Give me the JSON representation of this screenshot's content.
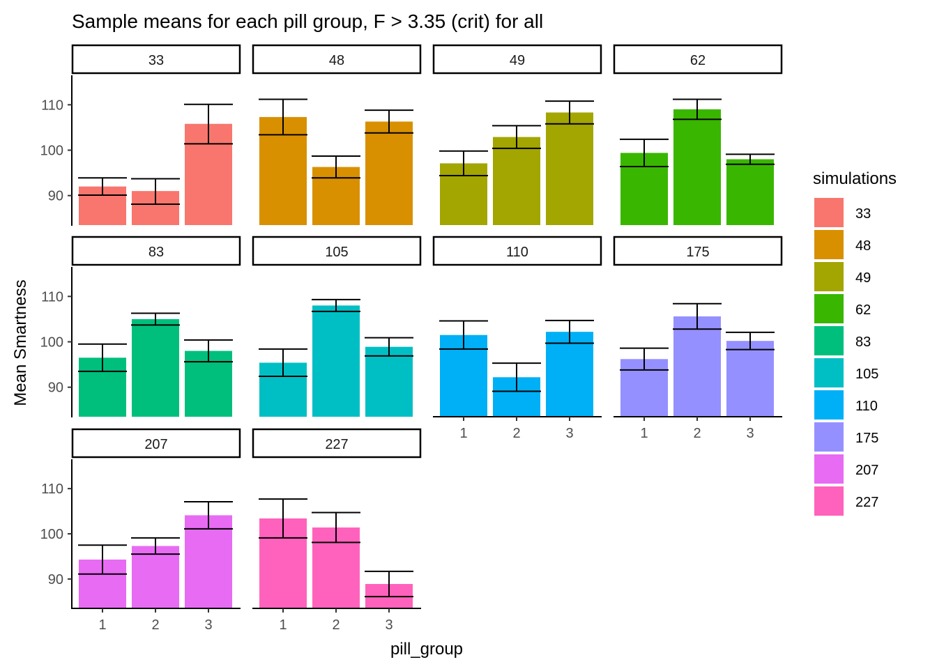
{
  "chart_data": {
    "type": "bar",
    "title": "Sample means for each pill group, F > 3.35 (crit) for all",
    "xlabel": "pill_group",
    "ylabel": "Mean Smartness",
    "categories": [
      "1",
      "2",
      "3"
    ],
    "yticks": [
      90,
      100,
      110
    ],
    "ylim": [
      83.5,
      116.5
    ],
    "grid": false,
    "legend": {
      "title": "simulations",
      "position": "right"
    },
    "panels": [
      {
        "label": "33",
        "color": "#F8766D",
        "means": [
          92.0,
          91.0,
          105.8
        ],
        "lower": [
          90.1,
          88.1,
          101.4
        ],
        "upper": [
          93.9,
          93.7,
          110.1
        ]
      },
      {
        "label": "48",
        "color": "#D89000",
        "means": [
          107.3,
          96.3,
          106.3
        ],
        "lower": [
          103.4,
          93.9,
          103.8
        ],
        "upper": [
          111.2,
          98.7,
          108.8
        ]
      },
      {
        "label": "49",
        "color": "#A3A500",
        "means": [
          97.1,
          102.9,
          108.3
        ],
        "lower": [
          94.4,
          100.4,
          105.8
        ],
        "upper": [
          99.8,
          105.4,
          110.8
        ]
      },
      {
        "label": "62",
        "color": "#39B600",
        "means": [
          99.4,
          109.0,
          98.0
        ],
        "lower": [
          96.4,
          106.8,
          96.9
        ],
        "upper": [
          102.4,
          111.2,
          99.1
        ]
      },
      {
        "label": "83",
        "color": "#00BF7D",
        "means": [
          96.5,
          105.0,
          98.0
        ],
        "lower": [
          93.5,
          103.7,
          95.6
        ],
        "upper": [
          99.5,
          106.3,
          100.4
        ]
      },
      {
        "label": "105",
        "color": "#00BFC4",
        "means": [
          95.4,
          108.0,
          98.9
        ],
        "lower": [
          92.4,
          106.7,
          96.9
        ],
        "upper": [
          98.4,
          109.3,
          100.9
        ]
      },
      {
        "label": "110",
        "color": "#00B0F6",
        "means": [
          101.5,
          92.2,
          102.2
        ],
        "lower": [
          98.4,
          89.1,
          99.7
        ],
        "upper": [
          104.6,
          95.3,
          104.7
        ]
      },
      {
        "label": "175",
        "color": "#9590FF",
        "means": [
          96.2,
          105.6,
          100.2
        ],
        "lower": [
          93.8,
          102.8,
          98.3
        ],
        "upper": [
          98.6,
          108.4,
          102.1
        ]
      },
      {
        "label": "207",
        "color": "#E76BF3",
        "means": [
          94.3,
          97.3,
          104.1
        ],
        "lower": [
          91.1,
          95.5,
          101.1
        ],
        "upper": [
          97.5,
          99.1,
          107.1
        ]
      },
      {
        "label": "227",
        "color": "#FF62BC",
        "means": [
          103.4,
          101.4,
          88.9
        ],
        "lower": [
          99.1,
          98.1,
          86.1
        ],
        "upper": [
          107.7,
          104.7,
          91.7
        ]
      }
    ]
  }
}
